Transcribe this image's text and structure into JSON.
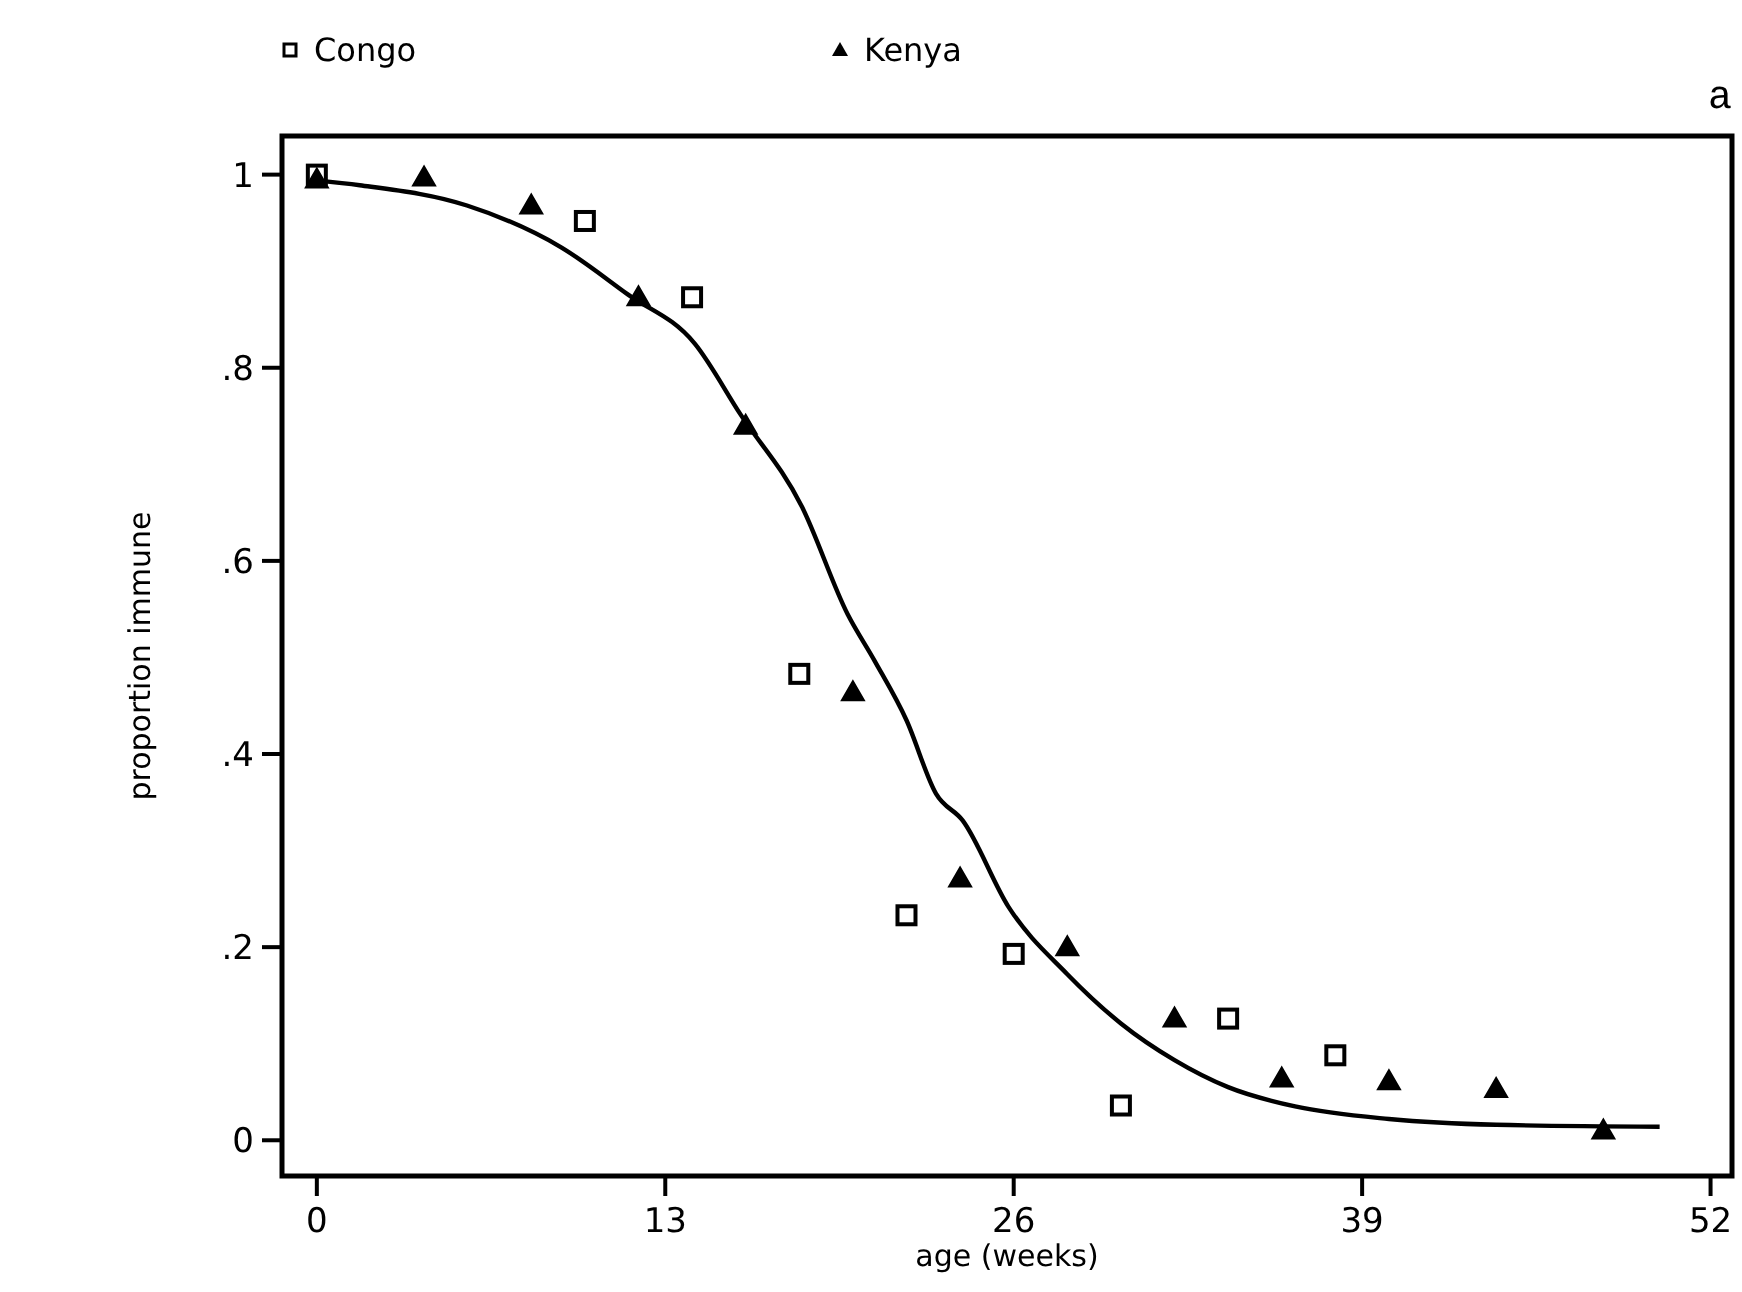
{
  "chart_data": {
    "type": "scatter",
    "xlabel": "age (weeks)",
    "ylabel": "proportion immune",
    "annotations": [
      "a"
    ],
    "legend": "top",
    "grid": false,
    "xlim": [
      -1.3,
      52.8
    ],
    "xticks": [
      0,
      13,
      26,
      39,
      52
    ],
    "ylim": [
      -0.037,
      1.04
    ],
    "yticks": [
      0,
      {
        "value": 0.2,
        "label": ".2"
      },
      {
        "value": 0.4,
        "label": ".4"
      },
      {
        "value": 0.6,
        "label": ".6"
      },
      {
        "value": 0.8,
        "label": ".8"
      },
      1
    ],
    "series": [
      {
        "name": "Congo",
        "color": "#000000",
        "marker": "square",
        "x": [
          0,
          10,
          14,
          18,
          22,
          26,
          30,
          34,
          38
        ],
        "values": [
          1.0,
          0.952,
          0.873,
          0.483,
          0.233,
          0.193,
          0.036,
          0.126,
          0.088
        ]
      },
      {
        "name": "Kenya",
        "color": "#000000",
        "marker": "triangle",
        "x": [
          0,
          4,
          8,
          12,
          16,
          20,
          24,
          28,
          32,
          36,
          40,
          44,
          48
        ],
        "values": [
          0.995,
          0.997,
          0.968,
          0.873,
          0.74,
          0.464,
          0.271,
          0.2,
          0.126,
          0.064,
          0.061,
          0.053,
          0.01
        ]
      },
      {
        "type": "line",
        "color": "#000000",
        "marker": "none",
        "line_style": "solid",
        "x": [
          0,
          1.6,
          5.6,
          9.1,
          11.6,
          14.1,
          15.8,
          18.1,
          19.8,
          20.8,
          22,
          23.1,
          24.1,
          25.8,
          28,
          30,
          32,
          34,
          36.5,
          40,
          44,
          50.1
        ],
        "values": [
          0.994,
          0.989,
          0.968,
          0.925,
          0.876,
          0.825,
          0.752,
          0.656,
          0.545,
          0.497,
          0.435,
          0.359,
          0.331,
          0.242,
          0.172,
          0.121,
          0.083,
          0.055,
          0.035,
          0.022,
          0.016,
          0.014
        ]
      }
    ]
  }
}
